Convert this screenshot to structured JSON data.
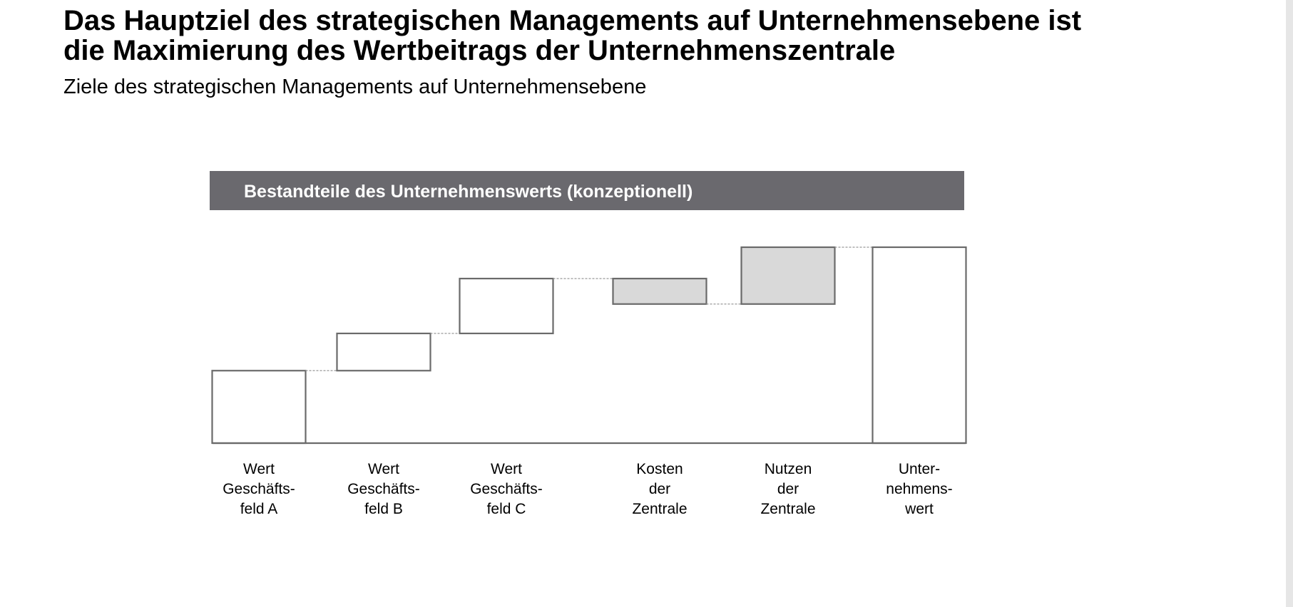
{
  "header": {
    "title_lines": [
      "Das Hauptziel des strategischen Managements auf Unternehmensebene ist",
      "die Maximierung des Wertbeitrags der Unternehmenszentrale"
    ],
    "subtitle": "Ziele des strategischen Managements auf Unternehmensebene"
  },
  "chart_data": {
    "type": "waterfall",
    "title": "Bestandteile des Unternehmenswerts (konzeptionell)",
    "categories": [
      [
        "Wert",
        "Geschäfts-",
        "feld A"
      ],
      [
        "Wert",
        "Geschäfts-",
        "feld B"
      ],
      [
        "Wert",
        "Geschäfts-",
        "feld C"
      ],
      [
        "Kosten",
        "der",
        "Zentrale"
      ],
      [
        "Nutzen",
        "der",
        "Zentrale"
      ],
      [
        "Unter-",
        "nehmens-",
        "wert"
      ]
    ],
    "values": [
      37,
      19,
      28,
      -13,
      29,
      100
    ],
    "colors": [
      "#ffffff",
      "#ffffff",
      "#ffffff",
      "#d9d9d9",
      "#d9d9d9",
      "#ffffff"
    ],
    "last_is_total": true,
    "ylim": [
      0,
      100
    ]
  }
}
